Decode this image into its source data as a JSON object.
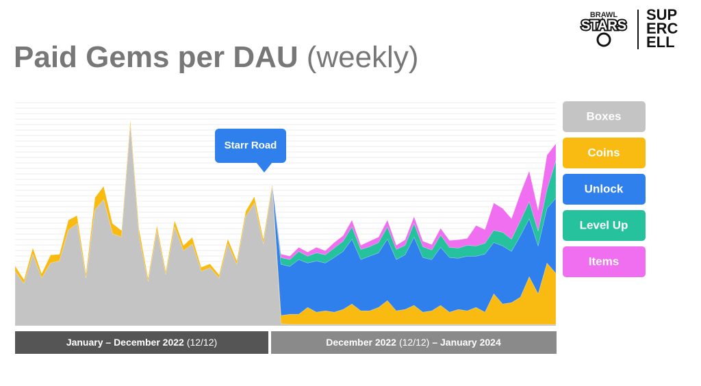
{
  "chart_data": {
    "type": "stacked_area",
    "title": "Paid Gems per DAU",
    "title_suffix": "(weekly)",
    "logos": {
      "brawl_stars": [
        "BRAWL",
        "STARS"
      ],
      "supercell": [
        "SUP",
        "ERC",
        "ELL"
      ]
    },
    "annotation": "Starr Road",
    "periods": [
      {
        "label": "January – December 2022",
        "note": "(12/12)"
      },
      {
        "label": "December 2022",
        "note": "(12/12)",
        "label_end": "– January 2024"
      }
    ],
    "grid": true,
    "categories": [
      null,
      null,
      null,
      null,
      null,
      null,
      null,
      null,
      null,
      null,
      null,
      null,
      null,
      null,
      null,
      null,
      null,
      null,
      null,
      null,
      null,
      null,
      null,
      null,
      null,
      null,
      null,
      null,
      null,
      null,
      null,
      null,
      null,
      null,
      null,
      null,
      null,
      null,
      null,
      null,
      null,
      null,
      null,
      null,
      null,
      null,
      null,
      null,
      null,
      null,
      null,
      null,
      null,
      null,
      null,
      null,
      null,
      null,
      null,
      null,
      null,
      null
    ],
    "series": [
      {
        "name": "Boxes",
        "color": "#c4c4c4",
        "values": [
          80,
          62,
          105,
          70,
          92,
          95,
          140,
          150,
          70,
          170,
          185,
          135,
          130,
          295,
          130,
          65,
          140,
          75,
          145,
          110,
          120,
          80,
          85,
          70,
          120,
          90,
          160,
          180,
          120,
          205,
          3,
          2,
          2,
          2,
          2,
          2,
          2,
          2,
          2,
          2,
          2,
          2,
          2,
          2,
          2,
          2,
          2,
          2,
          2,
          2,
          2,
          2,
          2,
          2,
          2,
          2,
          2,
          2,
          2,
          2,
          2,
          2
        ]
      },
      {
        "name": "Coins",
        "color": "#f9bb12",
        "values": [
          8,
          6,
          10,
          7,
          12,
          10,
          15,
          12,
          8,
          18,
          20,
          15,
          10,
          10,
          12,
          6,
          8,
          6,
          10,
          8,
          10,
          6,
          6,
          5,
          8,
          6,
          8,
          10,
          8,
          5,
          12,
          15,
          15,
          25,
          18,
          20,
          18,
          22,
          30,
          20,
          20,
          25,
          35,
          20,
          22,
          28,
          18,
          20,
          28,
          18,
          22,
          20,
          25,
          18,
          45,
          30,
          32,
          40,
          70,
          45,
          90,
          75
        ]
      },
      {
        "name": "Unlock",
        "color": "#2f80ed",
        "values": [
          0,
          0,
          0,
          0,
          0,
          0,
          0,
          0,
          0,
          0,
          0,
          0,
          0,
          0,
          0,
          0,
          0,
          0,
          0,
          0,
          0,
          0,
          0,
          0,
          0,
          0,
          0,
          0,
          0,
          0,
          75,
          70,
          80,
          65,
          75,
          70,
          80,
          85,
          95,
          75,
          80,
          80,
          90,
          75,
          80,
          100,
          80,
          75,
          85,
          80,
          75,
          80,
          75,
          85,
          75,
          85,
          75,
          90,
          85,
          70,
          80,
          110
        ]
      },
      {
        "name": "Level Up",
        "color": "#26c29d",
        "values": [
          0,
          0,
          0,
          0,
          0,
          0,
          0,
          0,
          0,
          0,
          0,
          0,
          0,
          0,
          0,
          0,
          0,
          0,
          0,
          0,
          0,
          0,
          0,
          0,
          0,
          0,
          0,
          0,
          0,
          0,
          10,
          10,
          12,
          10,
          12,
          12,
          14,
          15,
          18,
          15,
          14,
          15,
          18,
          15,
          14,
          20,
          16,
          14,
          18,
          15,
          15,
          16,
          15,
          16,
          18,
          20,
          18,
          22,
          25,
          22,
          28,
          55
        ]
      },
      {
        "name": "Items",
        "color": "#f06ef0",
        "values": [
          0,
          0,
          0,
          0,
          0,
          0,
          0,
          0,
          0,
          0,
          0,
          0,
          0,
          0,
          0,
          0,
          0,
          0,
          0,
          0,
          0,
          0,
          0,
          0,
          0,
          0,
          0,
          0,
          0,
          0,
          5,
          5,
          6,
          6,
          8,
          6,
          8,
          8,
          10,
          6,
          8,
          8,
          10,
          6,
          8,
          10,
          8,
          8,
          10,
          10,
          12,
          10,
          30,
          20,
          40,
          35,
          30,
          40,
          45,
          30,
          50,
          25
        ]
      }
    ]
  }
}
